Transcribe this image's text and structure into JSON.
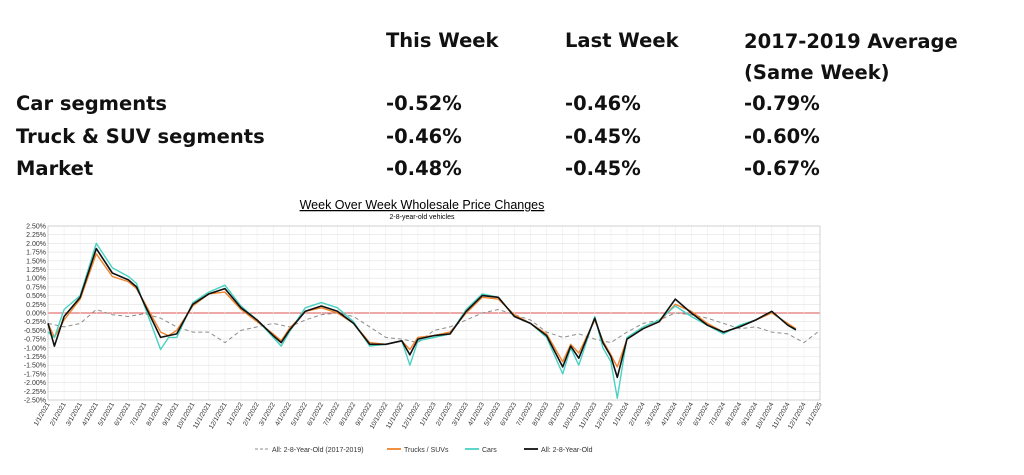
{
  "table": {
    "headers": [
      "This Week",
      "Last Week",
      "2017-2019 Average (Same Week)"
    ],
    "rows": [
      {
        "label": "Car segments",
        "this_week": "-0.52%",
        "last_week": "-0.46%",
        "avg": "-0.79%"
      },
      {
        "label": "Truck & SUV segments",
        "this_week": "-0.46%",
        "last_week": "-0.45%",
        "avg": "-0.60%"
      },
      {
        "label": "Market",
        "this_week": "-0.48%",
        "last_week": "-0.45%",
        "avg": "-0.67%"
      }
    ]
  },
  "chart_data": {
    "type": "line",
    "title": "Week Over Week Wholesale Price Changes",
    "subtitle": "2-8-year-old vehicles",
    "ylim": [
      -2.5,
      2.5
    ],
    "y_ticks": [
      "2.50%",
      "2.25%",
      "2.00%",
      "1.75%",
      "1.50%",
      "1.25%",
      "1.00%",
      "0.75%",
      "0.50%",
      "0.25%",
      "0.00%",
      "-0.25%",
      "-0.50%",
      "-0.75%",
      "-1.00%",
      "-1.25%",
      "-1.50%",
      "-1.75%",
      "-2.00%",
      "-2.25%",
      "-2.50%"
    ],
    "x_ticks": [
      "1/1/2021",
      "2/1/2021",
      "3/1/2021",
      "4/1/2021",
      "5/1/2021",
      "6/1/2021",
      "7/1/2021",
      "8/1/2021",
      "9/1/2021",
      "10/1/2021",
      "11/1/2021",
      "12/1/2021",
      "1/1/2022",
      "2/1/2022",
      "3/1/2022",
      "4/1/2022",
      "5/1/2022",
      "6/1/2022",
      "7/1/2022",
      "8/1/2022",
      "9/1/2022",
      "10/1/2022",
      "11/1/2022",
      "12/1/2022",
      "1/1/2023",
      "2/1/2023",
      "3/1/2023",
      "4/1/2023",
      "5/1/2023",
      "6/1/2023",
      "7/1/2023",
      "8/1/2023",
      "9/1/2023",
      "10/1/2023",
      "11/1/2023",
      "12/1/2023",
      "1/1/2024",
      "2/1/2024",
      "3/1/2024",
      "4/1/2024",
      "5/1/2024",
      "6/1/2024",
      "7/1/2024",
      "8/1/2024",
      "9/1/2024",
      "10/1/2024",
      "11/1/2024",
      "12/1/2024",
      "1/1/2025"
    ],
    "grid": true,
    "legend_position": "bottom",
    "series": [
      {
        "name": "All: 2-8-Year-Old (2017-2019)",
        "color": "#8c8c8c",
        "dash": true,
        "points": [
          [
            0,
            -0.3
          ],
          [
            1,
            -0.4
          ],
          [
            2,
            -0.3
          ],
          [
            3,
            0.1
          ],
          [
            4,
            -0.05
          ],
          [
            5,
            -0.1
          ],
          [
            6,
            -0.02
          ],
          [
            7,
            -0.15
          ],
          [
            8,
            -0.4
          ],
          [
            9,
            -0.55
          ],
          [
            10,
            -0.55
          ],
          [
            11,
            -0.85
          ],
          [
            12,
            -0.5
          ],
          [
            13,
            -0.4
          ],
          [
            14,
            -0.3
          ],
          [
            15,
            -0.4
          ],
          [
            16,
            -0.2
          ],
          [
            17,
            -0.05
          ],
          [
            18,
            0.0
          ],
          [
            19,
            -0.1
          ],
          [
            20,
            -0.4
          ],
          [
            21,
            -0.7
          ],
          [
            22,
            -0.75
          ],
          [
            23,
            -0.85
          ],
          [
            24,
            -0.5
          ],
          [
            25,
            -0.4
          ],
          [
            26,
            -0.2
          ],
          [
            27,
            0.0
          ],
          [
            28,
            0.1
          ],
          [
            29,
            -0.05
          ],
          [
            30,
            -0.2
          ],
          [
            31,
            -0.55
          ],
          [
            32,
            -0.7
          ],
          [
            33,
            -0.6
          ],
          [
            34,
            -0.75
          ],
          [
            35,
            -0.85
          ],
          [
            36,
            -0.55
          ],
          [
            37,
            -0.3
          ],
          [
            38,
            -0.2
          ],
          [
            39,
            0.0
          ],
          [
            40,
            -0.05
          ],
          [
            41,
            -0.15
          ],
          [
            42,
            -0.3
          ],
          [
            43,
            -0.45
          ],
          [
            44,
            -0.4
          ],
          [
            45,
            -0.55
          ],
          [
            46,
            -0.6
          ],
          [
            47,
            -0.85
          ],
          [
            48,
            -0.5
          ]
        ]
      },
      {
        "name": "Trucks / SUVs",
        "color": "#f0842c",
        "dash": false,
        "points": [
          [
            0,
            -0.3
          ],
          [
            0.4,
            -0.7
          ],
          [
            1,
            -0.2
          ],
          [
            2,
            0.4
          ],
          [
            3,
            1.7
          ],
          [
            4,
            1.05
          ],
          [
            5,
            0.9
          ],
          [
            5.5,
            0.7
          ],
          [
            6,
            0.3
          ],
          [
            7,
            -0.55
          ],
          [
            7.5,
            -0.65
          ],
          [
            8,
            -0.5
          ],
          [
            9,
            0.2
          ],
          [
            10,
            0.55
          ],
          [
            11,
            0.6
          ],
          [
            12,
            0.1
          ],
          [
            13,
            -0.25
          ],
          [
            14,
            -0.6
          ],
          [
            14.5,
            -0.8
          ],
          [
            15,
            -0.45
          ],
          [
            16,
            0.05
          ],
          [
            17,
            0.15
          ],
          [
            18,
            0.0
          ],
          [
            19,
            -0.3
          ],
          [
            20,
            -0.85
          ],
          [
            21,
            -0.9
          ],
          [
            22,
            -0.8
          ],
          [
            22.5,
            -1.05
          ],
          [
            23,
            -0.7
          ],
          [
            24,
            -0.65
          ],
          [
            25,
            -0.55
          ],
          [
            26,
            0.0
          ],
          [
            27,
            0.45
          ],
          [
            28,
            0.4
          ],
          [
            29,
            -0.05
          ],
          [
            30,
            -0.3
          ],
          [
            31,
            -0.6
          ],
          [
            32,
            -1.4
          ],
          [
            32.5,
            -0.9
          ],
          [
            33,
            -1.15
          ],
          [
            34,
            -0.2
          ],
          [
            34.5,
            -0.8
          ],
          [
            35,
            -1.2
          ],
          [
            35.4,
            -1.55
          ],
          [
            36,
            -0.75
          ],
          [
            37,
            -0.45
          ],
          [
            38,
            -0.25
          ],
          [
            39,
            0.25
          ],
          [
            40,
            0.05
          ],
          [
            41,
            -0.3
          ],
          [
            42,
            -0.55
          ],
          [
            43,
            -0.4
          ],
          [
            44,
            -0.2
          ],
          [
            45,
            0.0
          ],
          [
            46,
            -0.3
          ],
          [
            46.5,
            -0.45
          ]
        ]
      },
      {
        "name": "Cars",
        "color": "#49d1c1",
        "dash": false,
        "points": [
          [
            0,
            -0.55
          ],
          [
            0.4,
            -0.7
          ],
          [
            1,
            0.1
          ],
          [
            2,
            0.5
          ],
          [
            3,
            2.0
          ],
          [
            4,
            1.3
          ],
          [
            5,
            1.05
          ],
          [
            5.5,
            0.85
          ],
          [
            6,
            0.2
          ],
          [
            7,
            -1.05
          ],
          [
            7.5,
            -0.7
          ],
          [
            8,
            -0.7
          ],
          [
            9,
            0.3
          ],
          [
            10,
            0.6
          ],
          [
            11,
            0.8
          ],
          [
            12,
            0.2
          ],
          [
            13,
            -0.2
          ],
          [
            14,
            -0.7
          ],
          [
            14.5,
            -0.95
          ],
          [
            15,
            -0.55
          ],
          [
            16,
            0.15
          ],
          [
            17,
            0.3
          ],
          [
            18,
            0.15
          ],
          [
            19,
            -0.25
          ],
          [
            20,
            -0.95
          ],
          [
            21,
            -0.9
          ],
          [
            22,
            -0.8
          ],
          [
            22.5,
            -1.5
          ],
          [
            23,
            -0.8
          ],
          [
            24,
            -0.7
          ],
          [
            25,
            -0.6
          ],
          [
            26,
            0.1
          ],
          [
            27,
            0.55
          ],
          [
            28,
            0.45
          ],
          [
            29,
            -0.1
          ],
          [
            30,
            -0.3
          ],
          [
            31,
            -0.7
          ],
          [
            32,
            -1.75
          ],
          [
            32.5,
            -1.0
          ],
          [
            33,
            -1.5
          ],
          [
            34,
            -0.1
          ],
          [
            34.5,
            -1.0
          ],
          [
            35,
            -1.4
          ],
          [
            35.4,
            -2.45
          ],
          [
            36,
            -0.7
          ],
          [
            37,
            -0.4
          ],
          [
            38,
            -0.2
          ],
          [
            39,
            0.2
          ],
          [
            40,
            -0.1
          ],
          [
            41,
            -0.35
          ],
          [
            42,
            -0.6
          ],
          [
            43,
            -0.35
          ],
          [
            44,
            -0.2
          ],
          [
            45,
            0.05
          ],
          [
            46,
            -0.35
          ],
          [
            46.5,
            -0.5
          ]
        ]
      },
      {
        "name": "All: 2-8-Year-Old",
        "color": "#111111",
        "dash": false,
        "points": [
          [
            0,
            -0.3
          ],
          [
            0.4,
            -0.95
          ],
          [
            1,
            -0.1
          ],
          [
            2,
            0.45
          ],
          [
            3,
            1.85
          ],
          [
            4,
            1.15
          ],
          [
            5,
            0.95
          ],
          [
            5.5,
            0.75
          ],
          [
            6,
            0.25
          ],
          [
            7,
            -0.7
          ],
          [
            7.5,
            -0.65
          ],
          [
            8,
            -0.6
          ],
          [
            9,
            0.25
          ],
          [
            10,
            0.55
          ],
          [
            11,
            0.7
          ],
          [
            12,
            0.15
          ],
          [
            13,
            -0.2
          ],
          [
            14,
            -0.65
          ],
          [
            14.5,
            -0.85
          ],
          [
            15,
            -0.5
          ],
          [
            16,
            0.05
          ],
          [
            17,
            0.2
          ],
          [
            18,
            0.05
          ],
          [
            19,
            -0.3
          ],
          [
            20,
            -0.9
          ],
          [
            21,
            -0.9
          ],
          [
            22,
            -0.8
          ],
          [
            22.5,
            -1.2
          ],
          [
            23,
            -0.75
          ],
          [
            24,
            -0.65
          ],
          [
            25,
            -0.6
          ],
          [
            26,
            0.05
          ],
          [
            27,
            0.5
          ],
          [
            28,
            0.45
          ],
          [
            29,
            -0.1
          ],
          [
            30,
            -0.3
          ],
          [
            31,
            -0.65
          ],
          [
            32,
            -1.55
          ],
          [
            32.5,
            -0.95
          ],
          [
            33,
            -1.3
          ],
          [
            34,
            -0.15
          ],
          [
            34.5,
            -0.85
          ],
          [
            35,
            -1.25
          ],
          [
            35.4,
            -1.85
          ],
          [
            36,
            -0.75
          ],
          [
            37,
            -0.45
          ],
          [
            38,
            -0.25
          ],
          [
            39,
            0.4
          ],
          [
            40,
            0.0
          ],
          [
            41,
            -0.35
          ],
          [
            42,
            -0.55
          ],
          [
            43,
            -0.4
          ],
          [
            44,
            -0.2
          ],
          [
            45,
            0.05
          ],
          [
            46,
            -0.35
          ],
          [
            46.5,
            -0.48
          ]
        ]
      }
    ]
  }
}
